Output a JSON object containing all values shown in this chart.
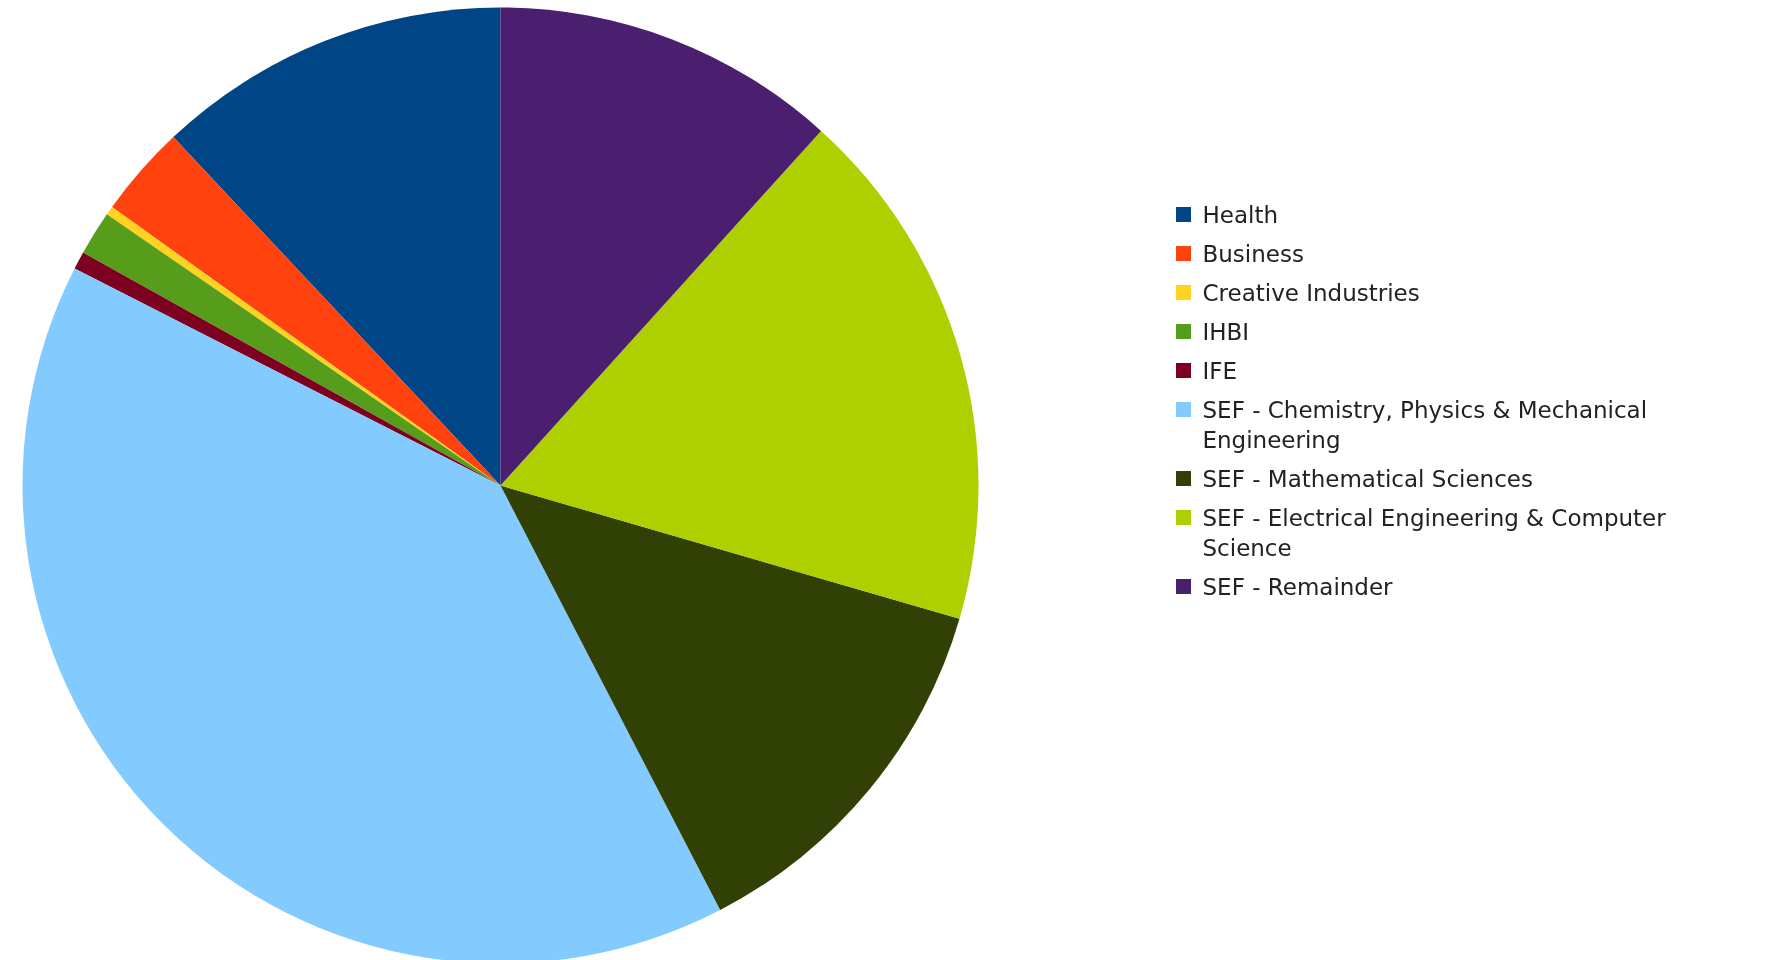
{
  "chart_data": {
    "type": "pie",
    "categories": [
      "Health",
      "Business",
      "Creative Industries",
      "IHBI",
      "IFE",
      "SEF - Chemistry, Physics & Mechanical Engineering",
      "SEF - Mathematical Sciences",
      "SEF - Electrical Engineering & Computer Science",
      "SEF - Remainder"
    ],
    "values": [
      12.0,
      3.1,
      0.3,
      1.5,
      0.6,
      40.1,
      12.9,
      17.8,
      11.7
    ],
    "colors": [
      "#004586",
      "#ff420e",
      "#ffd320",
      "#579d1c",
      "#7e0021",
      "#83caff",
      "#314004",
      "#aecf00",
      "#4b1f6f"
    ],
    "legend": "right"
  }
}
